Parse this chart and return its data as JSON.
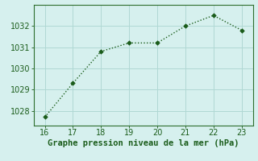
{
  "x": [
    16,
    17,
    18,
    19,
    20,
    21,
    22,
    23
  ],
  "y": [
    1027.7,
    1029.3,
    1030.8,
    1031.2,
    1031.2,
    1032.0,
    1032.5,
    1031.8
  ],
  "line_color": "#1a5c1a",
  "marker_color": "#1a5c1a",
  "bg_color": "#d6f0ee",
  "grid_color": "#b0d8d4",
  "xlabel": "Graphe pression niveau de la mer (hPa)",
  "xlabel_color": "#1a5c1a",
  "xlabel_fontsize": 7.5,
  "xlim": [
    15.6,
    23.4
  ],
  "ylim": [
    1027.3,
    1033.0
  ],
  "xticks": [
    16,
    17,
    18,
    19,
    20,
    21,
    22,
    23
  ],
  "yticks": [
    1028,
    1029,
    1030,
    1031,
    1032
  ],
  "tick_fontsize": 7,
  "tick_color": "#1a5c1a",
  "spine_color": "#2d6e2d"
}
